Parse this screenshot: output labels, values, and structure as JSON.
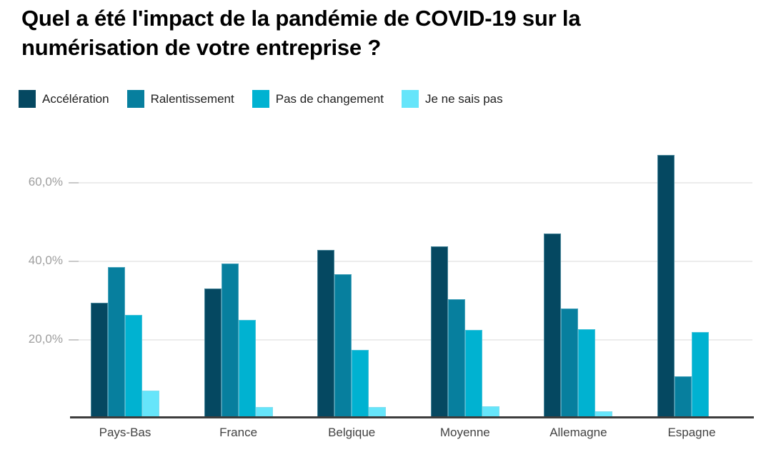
{
  "title": "Quel a été l'impact de la pandémie de COVID-19 sur la numérisation de votre entreprise ?",
  "colors": {
    "axis_line": "#3d3d3d",
    "gridline": "#ececec",
    "tick_mark": "#c9c9c9",
    "y_tick_text": "#9e9e9e",
    "x_label_text": "#424242",
    "legend_text": "#212121"
  },
  "chart_data": {
    "type": "bar",
    "title": "Quel a été l'impact de la pandémie de COVID-19 sur la numérisation de votre entreprise ?",
    "categories": [
      "Pays-Bas",
      "France",
      "Belgique",
      "Moyenne",
      "Allemagne",
      "Espagne"
    ],
    "series": [
      {
        "name": "Accélération",
        "color": "#054861",
        "values": [
          29.3,
          33.0,
          42.8,
          43.6,
          47.0,
          66.9
        ]
      },
      {
        "name": "Ralentissement",
        "color": "#077f9e",
        "values": [
          38.3,
          39.2,
          36.5,
          30.2,
          27.8,
          10.5
        ]
      },
      {
        "name": "Pas de changement",
        "color": "#00b2d1",
        "values": [
          26.2,
          25.0,
          17.3,
          22.4,
          22.6,
          21.8
        ]
      },
      {
        "name": "Je ne sais pas",
        "color": "#66e5fa",
        "values": [
          7.0,
          2.8,
          2.7,
          2.9,
          1.7,
          0.0
        ]
      }
    ],
    "xlabel": "",
    "ylabel": "",
    "ylim": [
      0,
      70
    ],
    "yticks": [
      {
        "value": 20,
        "label": "20,0%"
      },
      {
        "value": 40,
        "label": "40,0%"
      },
      {
        "value": 60,
        "label": "60,0%"
      }
    ],
    "grid": true,
    "legend_position": "top"
  }
}
